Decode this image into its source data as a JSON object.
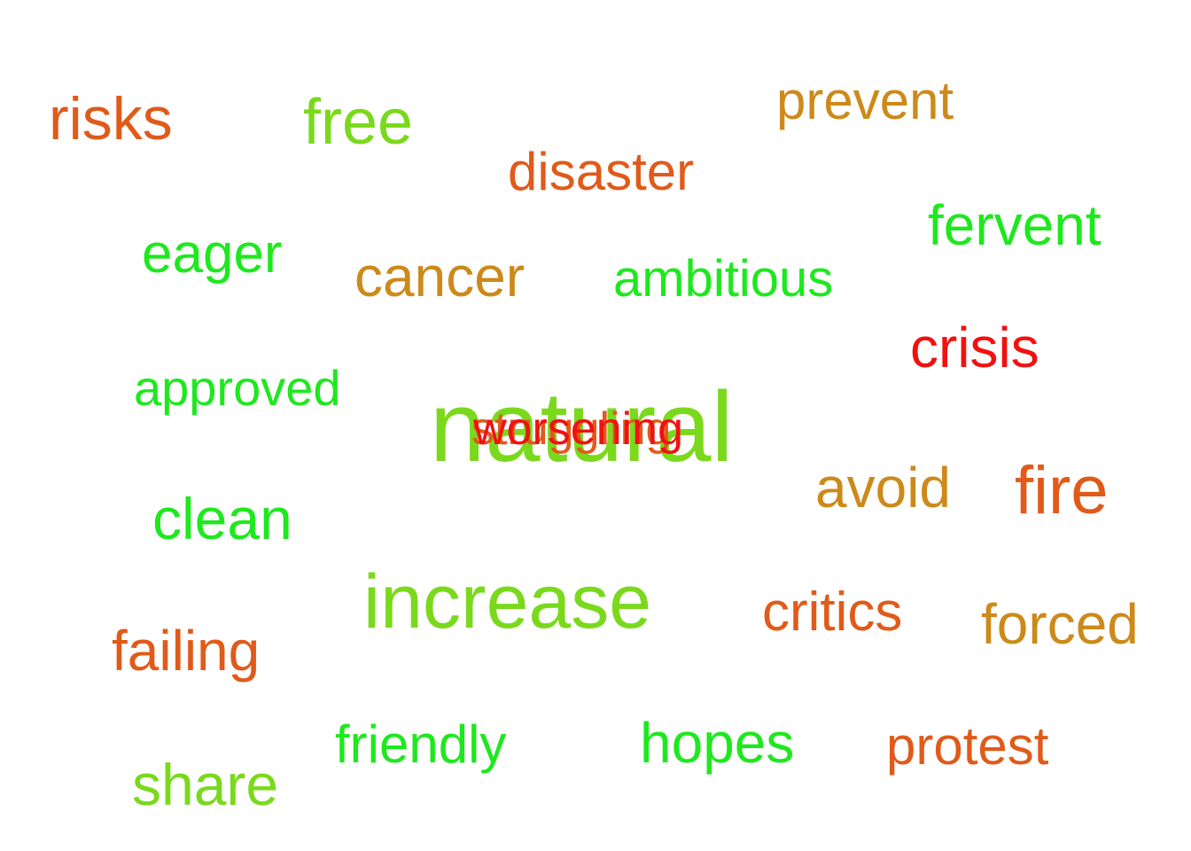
{
  "cloud": {
    "colors": {
      "orange": "#e05a1a",
      "lime": "#7ad91c",
      "green": "#1ee81e",
      "gold": "#cc8a1a",
      "red": "#f21010"
    },
    "words": {
      "risks": "risks",
      "free": "free",
      "prevent": "prevent",
      "disaster": "disaster",
      "fervent": "fervent",
      "eager": "eager",
      "cancer": "cancer",
      "ambitious": "ambitious",
      "crisis": "crisis",
      "approved": "approved",
      "natural": "natural",
      "struggling": "struggling",
      "worsening": "worsening",
      "avoid": "avoid",
      "fire": "fire",
      "clean": "clean",
      "increase": "increase",
      "critics": "critics",
      "forced": "forced",
      "failing": "failing",
      "friendly": "friendly",
      "hopes": "hopes",
      "protest": "protest",
      "share": "share"
    }
  }
}
